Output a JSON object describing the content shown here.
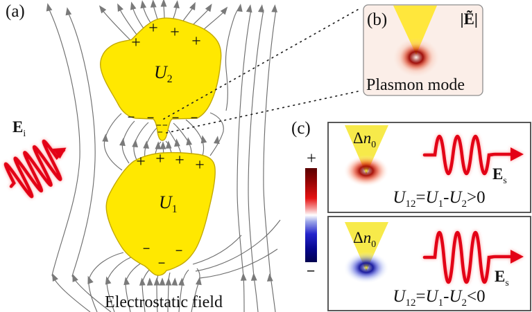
{
  "figure": {
    "description": "Two yellow nanoparticles U1 and U2 in an electrostatic field with plasmon mode inset and carrier-density response panels"
  },
  "symbols": {
    "plus": "+",
    "minus": "−"
  },
  "panel_a": {
    "label": "(a)",
    "caption": "Electrostatic field",
    "u2_label": [
      {
        "t": "U",
        "s": "i"
      },
      {
        "t": "2",
        "s": "sub"
      }
    ],
    "u1_label": [
      {
        "t": "U",
        "s": "i"
      },
      {
        "t": "1",
        "s": "sub"
      }
    ],
    "ei_label": [
      {
        "t": "E",
        "s": "b"
      },
      {
        "t": "i",
        "s": "sub"
      }
    ]
  },
  "panel_b": {
    "label": "(b)",
    "field_magnitude_label": "|Ẽ|",
    "caption": "Plasmon mode"
  },
  "panel_c": {
    "label": "(c)",
    "colorbar": {
      "plus": "+",
      "minus": "−",
      "top_color": "#5a0000",
      "mid_color": "#ffffff",
      "bottom_color": "#02024f"
    },
    "box1": {
      "dn_label": [
        {
          "t": "Δ",
          "s": "n"
        },
        {
          "t": "n",
          "s": "i"
        },
        {
          "t": "0",
          "s": "sub"
        }
      ],
      "equation": [
        {
          "t": "U",
          "s": "i"
        },
        {
          "t": "12",
          "s": "sub"
        },
        {
          "t": "=",
          "s": "n"
        },
        {
          "t": "U",
          "s": "i"
        },
        {
          "t": "1",
          "s": "sub"
        },
        {
          "t": "-",
          "s": "n"
        },
        {
          "t": "U",
          "s": "i"
        },
        {
          "t": "2",
          "s": "sub"
        },
        {
          "t": ">0",
          "s": "n"
        }
      ],
      "es_label": [
        {
          "t": "E",
          "s": "b"
        },
        {
          "t": "s",
          "s": "sub"
        }
      ],
      "glow_color": "#c01000"
    },
    "box2": {
      "dn_label": [
        {
          "t": "Δ",
          "s": "n"
        },
        {
          "t": "n",
          "s": "i"
        },
        {
          "t": "0",
          "s": "sub"
        }
      ],
      "equation": [
        {
          "t": "U",
          "s": "i"
        },
        {
          "t": "12",
          "s": "sub"
        },
        {
          "t": "=",
          "s": "n"
        },
        {
          "t": "U",
          "s": "i"
        },
        {
          "t": "1",
          "s": "sub"
        },
        {
          "t": "-",
          "s": "n"
        },
        {
          "t": "U",
          "s": "i"
        },
        {
          "t": "2",
          "s": "sub"
        },
        {
          "t": "<0",
          "s": "n"
        }
      ],
      "es_label": [
        {
          "t": "E",
          "s": "b"
        },
        {
          "t": "s",
          "s": "sub"
        }
      ],
      "glow_color": "#1515b0"
    }
  },
  "colors": {
    "particle_yellow": "#ffe800",
    "field_line_gray": "#6e6e6e",
    "wave_red": "#e30613",
    "plus_red": "#ee3c00",
    "minus_navy": "#1c1c9e"
  }
}
